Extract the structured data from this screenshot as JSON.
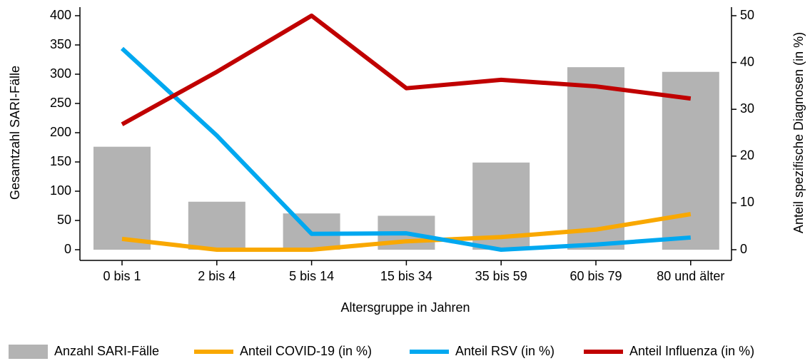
{
  "chart_data": {
    "type": "bar-line",
    "x_label": "Altersgruppe in Jahren",
    "y_label": "Gesamtzahl SARI-Fälle",
    "y2_label": "Anteil spezifische Diagnosen (in %)",
    "categories": [
      "0 bis 1",
      "2 bis 4",
      "5 bis 14",
      "15 bis 34",
      "35 bis 59",
      "60 bis 79",
      "80 und älter"
    ],
    "ylim": [
      0,
      400
    ],
    "yticks": [
      0,
      50,
      100,
      150,
      200,
      250,
      300,
      350,
      400
    ],
    "y2lim": [
      0,
      50
    ],
    "y2ticks": [
      0,
      10,
      20,
      30,
      40,
      50
    ],
    "series": [
      {
        "name": "Anzahl SARI-Fälle",
        "type": "bar",
        "color": "#b3b3b3",
        "values": [
          176,
          82,
          62,
          58,
          149,
          312,
          304
        ]
      },
      {
        "name": "Anteil COVID-19 (in %)",
        "type": "line",
        "axis": "y2",
        "color": "#f9a800",
        "values": [
          2.3,
          0,
          0,
          1.8,
          2.7,
          4.3,
          7.6
        ]
      },
      {
        "name": "Anteil RSV (in %)",
        "type": "line",
        "axis": "y2",
        "color": "#00a8f0",
        "values": [
          43,
          24.4,
          3.4,
          3.5,
          0,
          1.1,
          2.6
        ]
      },
      {
        "name": "Anteil Influenza (in %)",
        "type": "line",
        "axis": "y2",
        "color": "#c00000",
        "values": [
          26.8,
          38,
          50,
          34.5,
          36.3,
          34.9,
          32.3
        ]
      }
    ]
  }
}
